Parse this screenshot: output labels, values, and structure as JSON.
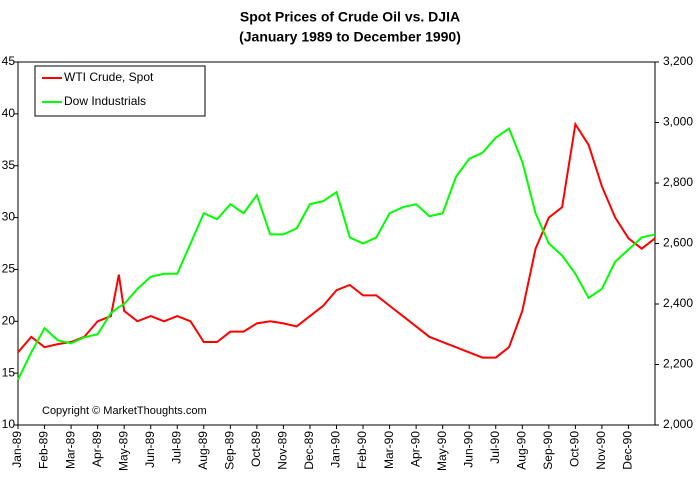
{
  "chart_data": {
    "type": "line",
    "title": "Spot Prices of Crude Oil vs. DJIA",
    "subtitle": "(January 1989 to December 1990)",
    "annotation": "Copyright © MarketThoughts.com",
    "legend": "top-left",
    "x": [
      0,
      0.5,
      1,
      1.5,
      2,
      2.5,
      3,
      3.5,
      3.8,
      4,
      4.5,
      5,
      5.5,
      6,
      6.5,
      7,
      7.5,
      8,
      8.5,
      9,
      9.5,
      10,
      10.5,
      11,
      11.5,
      12,
      12.5,
      13,
      13.5,
      14,
      14.5,
      15,
      15.5,
      16,
      16.5,
      17,
      17.5,
      18,
      18.5,
      19,
      19.5,
      20,
      20.5,
      21,
      21.5,
      22,
      22.5,
      23,
      23.5,
      24
    ],
    "xlim": [
      0,
      24
    ],
    "xticks": [
      {
        "value": 0,
        "label": "Jan-89"
      },
      {
        "value": 1,
        "label": "Feb-89"
      },
      {
        "value": 2,
        "label": "Mar-89"
      },
      {
        "value": 3,
        "label": "Apr-89"
      },
      {
        "value": 4,
        "label": "May-89"
      },
      {
        "value": 5,
        "label": "Jun-89"
      },
      {
        "value": 6,
        "label": "Jul-89"
      },
      {
        "value": 7,
        "label": "Aug-89"
      },
      {
        "value": 8,
        "label": "Sep-89"
      },
      {
        "value": 9,
        "label": "Oct-89"
      },
      {
        "value": 10,
        "label": "Nov-89"
      },
      {
        "value": 11,
        "label": "Dec-89"
      },
      {
        "value": 12,
        "label": "Jan-90"
      },
      {
        "value": 13,
        "label": "Feb-90"
      },
      {
        "value": 14,
        "label": "Mar-90"
      },
      {
        "value": 15,
        "label": "Apr-90"
      },
      {
        "value": 16,
        "label": "May-90"
      },
      {
        "value": 17,
        "label": "Jun-90"
      },
      {
        "value": 18,
        "label": "Jul-90"
      },
      {
        "value": 19,
        "label": "Aug-90"
      },
      {
        "value": 20,
        "label": "Sep-90"
      },
      {
        "value": 21,
        "label": "Oct-90"
      },
      {
        "value": 22,
        "label": "Nov-90"
      },
      {
        "value": 23,
        "label": "Dec-90"
      }
    ],
    "ylim": [
      10,
      45
    ],
    "yticks": [
      10,
      15,
      20,
      25,
      30,
      35,
      40,
      45
    ],
    "y2lim": [
      2000,
      3200
    ],
    "y2ticks": [
      {
        "value": 2000,
        "label": "2,000"
      },
      {
        "value": 2200,
        "label": "2,200"
      },
      {
        "value": 2400,
        "label": "2,400"
      },
      {
        "value": 2600,
        "label": "2,600"
      },
      {
        "value": 2800,
        "label": "2,800"
      },
      {
        "value": 3000,
        "label": "3,000"
      },
      {
        "value": 3200,
        "label": "3,200"
      }
    ],
    "series": [
      {
        "name": "WTI Crude, Spot",
        "color": "#ff0000",
        "values": [
          17,
          18.5,
          17.5,
          17.8,
          18,
          18.5,
          20,
          20.5,
          24.5,
          21,
          20,
          20.5,
          20,
          20.5,
          20,
          18,
          18,
          19,
          19,
          19.8,
          20,
          19.8,
          19.5,
          20.5,
          21.5,
          23,
          23.5,
          22.5,
          22.5,
          21.5,
          20.5,
          19.5,
          18.5,
          18,
          17.5,
          17,
          16.5,
          16.5,
          17.5,
          21,
          27,
          30,
          31,
          39,
          37,
          33,
          30,
          28,
          27,
          28
        ]
      },
      {
        "name": "Dow Industrials",
        "color": "#00ff00",
        "axis": "y2",
        "values": [
          2150,
          2240,
          2320,
          2280,
          2270,
          2290,
          2300,
          2370,
          2390,
          2400,
          2450,
          2490,
          2500,
          2500,
          2600,
          2700,
          2680,
          2730,
          2700,
          2760,
          2630,
          2630,
          2650,
          2730,
          2740,
          2770,
          2620,
          2600,
          2620,
          2700,
          2720,
          2730,
          2690,
          2700,
          2820,
          2880,
          2900,
          2950,
          2980,
          2870,
          2700,
          2600,
          2560,
          2500,
          2420,
          2450,
          2540,
          2580,
          2620,
          2630
        ]
      }
    ]
  }
}
